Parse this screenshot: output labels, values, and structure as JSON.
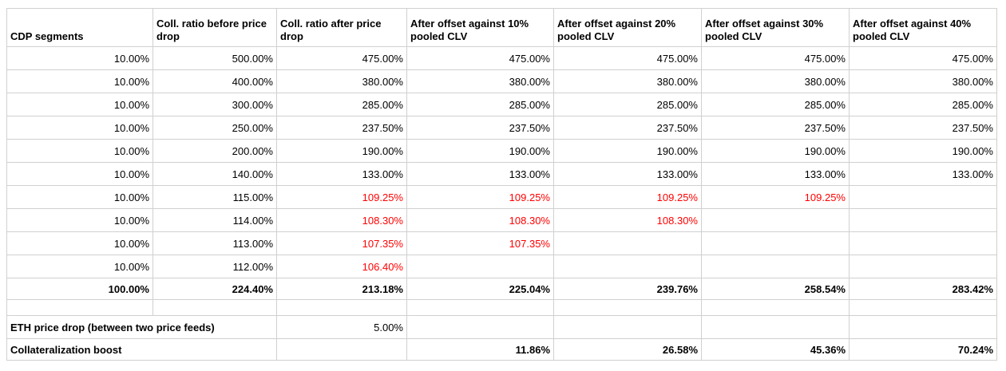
{
  "colors": {
    "red": "#ff0000",
    "text": "#000000",
    "border": "#d0d0d0",
    "background": "#ffffff"
  },
  "table": {
    "headers": [
      "CDP segments",
      "Coll. ratio before price drop",
      "Coll. ratio after price drop",
      "After offset against 10% pooled CLV",
      "After offset against 20% pooled CLV",
      "After offset against 30% pooled CLV",
      "After offset against 40% pooled CLV"
    ],
    "rows": [
      [
        "10.00%",
        "500.00%",
        "475.00%",
        "475.00%",
        "475.00%",
        "475.00%",
        "475.00%"
      ],
      [
        "10.00%",
        "400.00%",
        "380.00%",
        "380.00%",
        "380.00%",
        "380.00%",
        "380.00%"
      ],
      [
        "10.00%",
        "300.00%",
        "285.00%",
        "285.00%",
        "285.00%",
        "285.00%",
        "285.00%"
      ],
      [
        "10.00%",
        "250.00%",
        "237.50%",
        "237.50%",
        "237.50%",
        "237.50%",
        "237.50%"
      ],
      [
        "10.00%",
        "200.00%",
        "190.00%",
        "190.00%",
        "190.00%",
        "190.00%",
        "190.00%"
      ],
      [
        "10.00%",
        "140.00%",
        "133.00%",
        "133.00%",
        "133.00%",
        "133.00%",
        "133.00%"
      ],
      [
        "10.00%",
        "115.00%",
        {
          "v": "109.25%",
          "red": true
        },
        {
          "v": "109.25%",
          "red": true
        },
        {
          "v": "109.25%",
          "red": true
        },
        {
          "v": "109.25%",
          "red": true
        },
        ""
      ],
      [
        "10.00%",
        "114.00%",
        {
          "v": "108.30%",
          "red": true
        },
        {
          "v": "108.30%",
          "red": true
        },
        {
          "v": "108.30%",
          "red": true
        },
        "",
        ""
      ],
      [
        "10.00%",
        "113.00%",
        {
          "v": "107.35%",
          "red": true
        },
        {
          "v": "107.35%",
          "red": true
        },
        "",
        "",
        ""
      ],
      [
        "10.00%",
        "112.00%",
        {
          "v": "106.40%",
          "red": true
        },
        "",
        "",
        "",
        ""
      ]
    ],
    "total_row": [
      "100.00%",
      "224.40%",
      "213.18%",
      "225.04%",
      "239.76%",
      "258.54%",
      "283.42%"
    ],
    "eth_price_drop_row": {
      "label": "ETH price drop (between two price feeds)",
      "value": "5.00%",
      "empty_cells": [
        "",
        "",
        "",
        ""
      ]
    },
    "boost_row": {
      "label": "Collateralization boost",
      "after_price_drop": "",
      "values": [
        "11.86%",
        "26.58%",
        "45.36%",
        "70.24%"
      ]
    }
  }
}
